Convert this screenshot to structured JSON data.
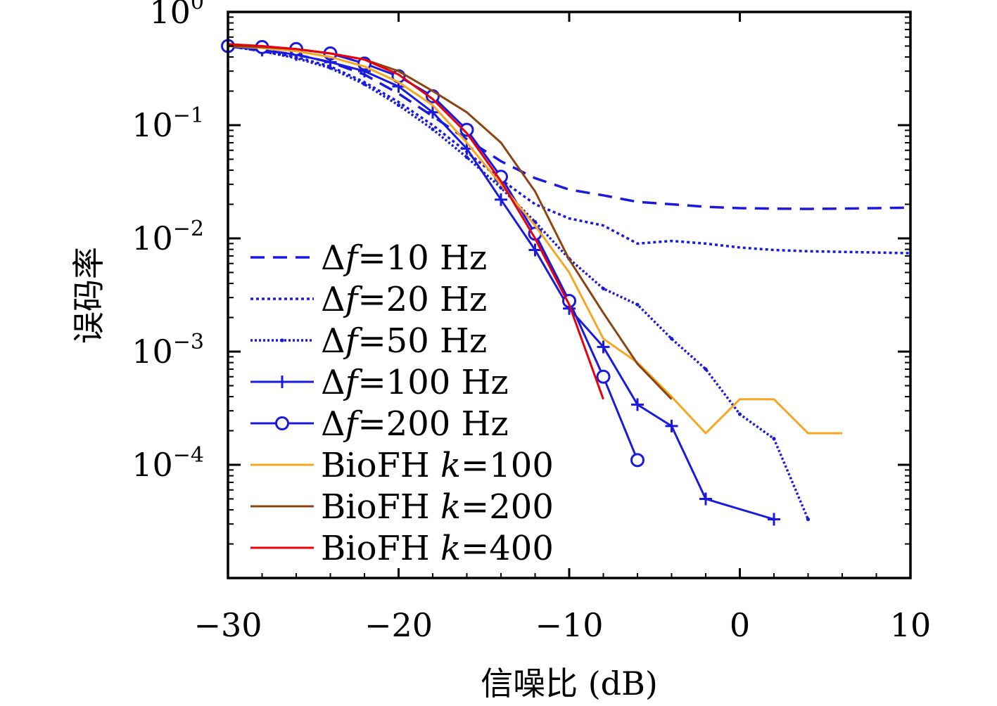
{
  "chart_data": {
    "type": "line",
    "xlabel": "信噪比 (dB)",
    "ylabel": "误码率",
    "xlim": [
      -30,
      10
    ],
    "ylim": [
      1e-05,
      1
    ],
    "yscale": "log",
    "xticks": [
      -30,
      -20,
      -10,
      0,
      10
    ],
    "xtick_labels": [
      "−30",
      "−20",
      "−10",
      "0",
      "10"
    ],
    "yticks": [
      1,
      0.1,
      0.01,
      0.001,
      0.0001
    ],
    "ytick_labels": [
      {
        "base": "10",
        "exp": "0"
      },
      {
        "base": "10",
        "exp": "−1"
      },
      {
        "base": "10",
        "exp": "−2"
      },
      {
        "base": "10",
        "exp": "−3"
      },
      {
        "base": "10",
        "exp": "−4"
      }
    ],
    "grid": false,
    "legend_position": "lower-left",
    "series": [
      {
        "name": "Δf=10 Hz",
        "color": "#1a1adf",
        "style": "dashed",
        "marker": "none",
        "x": [
          -30,
          -28,
          -26,
          -24,
          -22,
          -20,
          -18,
          -16,
          -14,
          -12,
          -10,
          -8,
          -6,
          -4,
          -2,
          0,
          2,
          4,
          6,
          8,
          10
        ],
        "y": [
          0.5,
          0.46,
          0.42,
          0.36,
          0.28,
          0.19,
          0.12,
          0.075,
          0.048,
          0.034,
          0.027,
          0.024,
          0.021,
          0.02,
          0.019,
          0.0185,
          0.0183,
          0.0182,
          0.0183,
          0.0185,
          0.0187
        ]
      },
      {
        "name": "Δf=20 Hz",
        "color": "#1a1adf",
        "style": "dotted",
        "marker": "none",
        "x": [
          -30,
          -28,
          -26,
          -24,
          -22,
          -20,
          -18,
          -16,
          -14,
          -12,
          -10,
          -8,
          -6,
          -4,
          -2,
          0,
          2,
          4,
          6,
          8,
          10
        ],
        "y": [
          0.5,
          0.45,
          0.4,
          0.33,
          0.24,
          0.16,
          0.1,
          0.058,
          0.033,
          0.02,
          0.015,
          0.013,
          0.009,
          0.0095,
          0.009,
          0.0083,
          0.0079,
          0.0077,
          0.0076,
          0.0075,
          0.0074
        ]
      },
      {
        "name": "Δf=50 Hz",
        "color": "#1a1adf",
        "style": "densely-dotted",
        "marker": "dot",
        "x": [
          -30,
          -28,
          -26,
          -24,
          -22,
          -20,
          -18,
          -16,
          -14,
          -12,
          -10,
          -8,
          -6,
          -4,
          -2,
          0,
          2,
          4
        ],
        "y": [
          0.5,
          0.45,
          0.39,
          0.32,
          0.23,
          0.15,
          0.092,
          0.052,
          0.028,
          0.014,
          0.0066,
          0.0036,
          0.0026,
          0.0013,
          0.0007,
          0.00028,
          0.00017,
          3.3e-05
        ]
      },
      {
        "name": "Δf=100 Hz",
        "color": "#1a1adf",
        "style": "solid",
        "marker": "plus",
        "x": [
          -30,
          -28,
          -26,
          -24,
          -22,
          -20,
          -18,
          -16,
          -14,
          -12,
          -10,
          -8,
          -6,
          -4,
          -2,
          2
        ],
        "y": [
          0.5,
          0.46,
          0.42,
          0.36,
          0.3,
          0.22,
          0.13,
          0.062,
          0.022,
          0.0079,
          0.0024,
          0.0011,
          0.00034,
          0.00022,
          5e-05,
          3.3e-05
        ]
      },
      {
        "name": "Δf=200 Hz",
        "color": "#1a1adf",
        "style": "solid",
        "marker": "circle",
        "x": [
          -30,
          -28,
          -26,
          -24,
          -22,
          -20,
          -18,
          -16,
          -14,
          -12,
          -10,
          -8,
          -6
        ],
        "y": [
          0.5,
          0.49,
          0.47,
          0.43,
          0.35,
          0.27,
          0.18,
          0.091,
          0.035,
          0.011,
          0.0028,
          0.0006,
          0.00011
        ]
      },
      {
        "name": "BioFH k=100",
        "color": "#f5a623",
        "style": "solid",
        "marker": "none",
        "x": [
          -30,
          -28,
          -26,
          -24,
          -22,
          -20,
          -18,
          -16,
          -14,
          -12,
          -10,
          -8,
          -6,
          -4,
          -2,
          0,
          2,
          4,
          6
        ],
        "y": [
          0.5,
          0.48,
          0.45,
          0.4,
          0.33,
          0.24,
          0.15,
          0.07,
          0.03,
          0.013,
          0.005,
          0.0013,
          0.0008,
          0.0004,
          0.00019,
          0.00038,
          0.00038,
          0.00019,
          0.00019
        ]
      },
      {
        "name": "BioFH k=200",
        "color": "#8b4513",
        "style": "solid",
        "marker": "none",
        "x": [
          -30,
          -28,
          -26,
          -24,
          -22,
          -20,
          -18,
          -16,
          -14,
          -12,
          -10,
          -8,
          -6,
          -4
        ],
        "y": [
          0.5,
          0.49,
          0.47,
          0.43,
          0.38,
          0.3,
          0.2,
          0.13,
          0.07,
          0.026,
          0.0065,
          0.0022,
          0.00078,
          0.00038
        ]
      },
      {
        "name": "BioFH k=400",
        "color": "#e8000b",
        "style": "solid",
        "marker": "none",
        "x": [
          -30,
          -28,
          -26,
          -24,
          -22,
          -20,
          -18,
          -16,
          -14,
          -12,
          -10,
          -8
        ],
        "y": [
          0.52,
          0.5,
          0.47,
          0.43,
          0.38,
          0.28,
          0.17,
          0.085,
          0.032,
          0.01,
          0.0026,
          0.00038
        ]
      }
    ],
    "legend_entries": [
      {
        "prefix": "Δ",
        "italic": "f",
        "suffix": "=10 Hz"
      },
      {
        "prefix": "Δ",
        "italic": "f",
        "suffix": "=20 Hz"
      },
      {
        "prefix": "Δ",
        "italic": "f",
        "suffix": "=50 Hz"
      },
      {
        "prefix": "Δ",
        "italic": "f",
        "suffix": "=100 Hz"
      },
      {
        "prefix": "Δ",
        "italic": "f",
        "suffix": "=200 Hz"
      },
      {
        "prefix": "BioFH ",
        "italic": "k",
        "suffix": "=100"
      },
      {
        "prefix": "BioFH ",
        "italic": "k",
        "suffix": "=200"
      },
      {
        "prefix": "BioFH ",
        "italic": "k",
        "suffix": "=400"
      }
    ]
  }
}
